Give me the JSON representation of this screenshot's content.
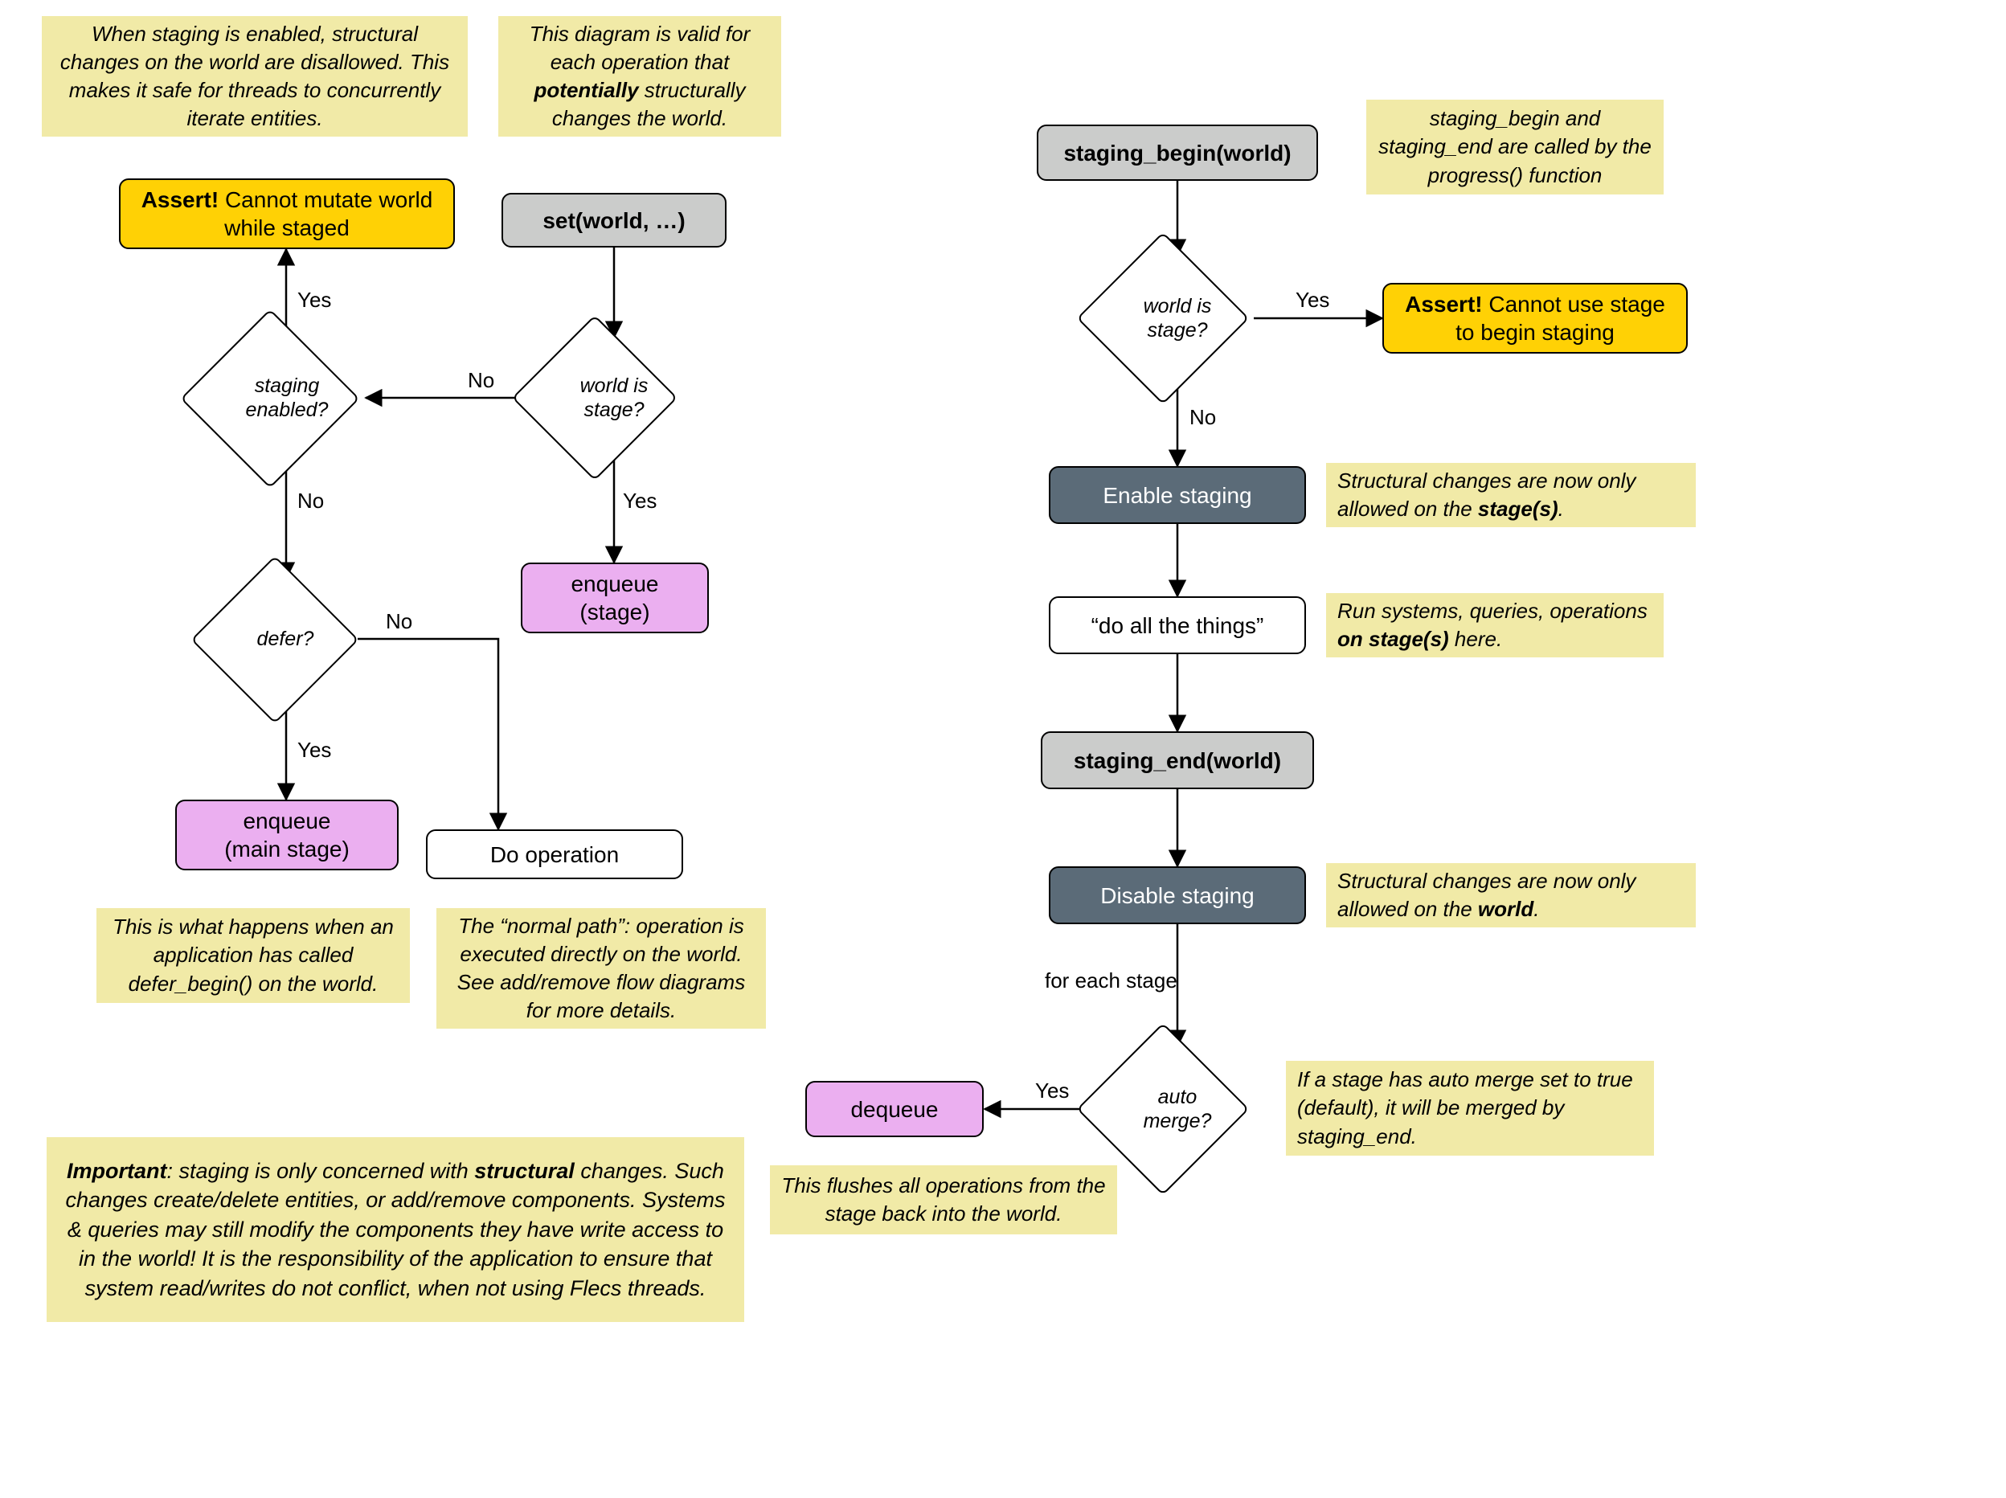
{
  "colors": {
    "note_bg": "#f1eaa7",
    "gray_bg": "#cbcccb",
    "yellow_bg": "#ffd105",
    "pink_bg": "#ebaff0",
    "dark_bg": "#5b6b78",
    "white_bg": "#ffffff",
    "dark_text": "#ffffff",
    "black": "#000000",
    "edge": "#000000"
  },
  "fonts": {
    "node": 28,
    "node_bold_big": 30,
    "note": 26,
    "big_note": 28,
    "decision": 25,
    "edge_label": 26
  },
  "flow": {
    "type": "flowchart",
    "left": {
      "notes": {
        "top_left": "When staging is enabled, structural changes on the world are disallowed. This makes it safe for threads to concurrently iterate entities.",
        "top_mid": "This diagram is valid for each operation that <b>potentially</b> structurally changes the world.",
        "defer_note": "This is what happens when an application has called defer_begin() on the world.",
        "normal_note": "The “normal path”: operation is executed directly on the world. See add/remove flow diagrams for more details.",
        "bottom": "<b>Important</b>: staging is only concerned with <b>structural</b> changes. Such changes create/delete entities, or add/remove components. Systems & queries may still modify the components they have write access to in the world! It is the responsibility of the application to ensure that system read/writes do not conflict, when not using Flecs threads."
      },
      "nodes": {
        "assert": "<b>Assert!</b> Cannot mutate world while staged",
        "set": "<b>set(world, …)</b>",
        "enqueue_stage": "enqueue (stage)",
        "enqueue_main": "enqueue (main stage)",
        "do_op": "Do operation"
      },
      "decisions": {
        "world_is_stage": "world is stage?",
        "staging_enabled": "staging enabled?",
        "defer": "defer?"
      },
      "edge_labels": {
        "yes1": "Yes",
        "no1": "No",
        "yes2": "Yes",
        "no2": "No",
        "yes3": "Yes",
        "no3": "No"
      }
    },
    "right": {
      "notes": {
        "begin_note": "staging_begin and staging_end are called by the progress() function",
        "enable_note": "Structural changes are now only allowed on the <b>stage(s)</b>.",
        "do_note": "Run systems, queries, operations <b>on stage(s)</b> here.",
        "disable_note": "Structural changes are now only allowed on the <b>world</b>.",
        "auto_note": "If a stage has auto merge set to true (default), it will be merged by staging_end.",
        "dequeue_note": "This flushes all operations from the stage back into the world."
      },
      "nodes": {
        "staging_begin": "<b>staging_begin(world)</b>",
        "assert": "<b>Assert!</b> Cannot use stage to begin staging",
        "enable": "Enable staging",
        "do_all": "“do all the things”",
        "staging_end": "<b>staging_end(world)</b>",
        "disable": "Disable staging",
        "dequeue": "dequeue"
      },
      "decisions": {
        "world_is_stage": "world is stage?",
        "auto_merge": "auto merge?"
      },
      "edge_labels": {
        "yes1": "Yes",
        "no1": "No",
        "for_each": "for each stage",
        "yes2": "Yes"
      }
    }
  }
}
